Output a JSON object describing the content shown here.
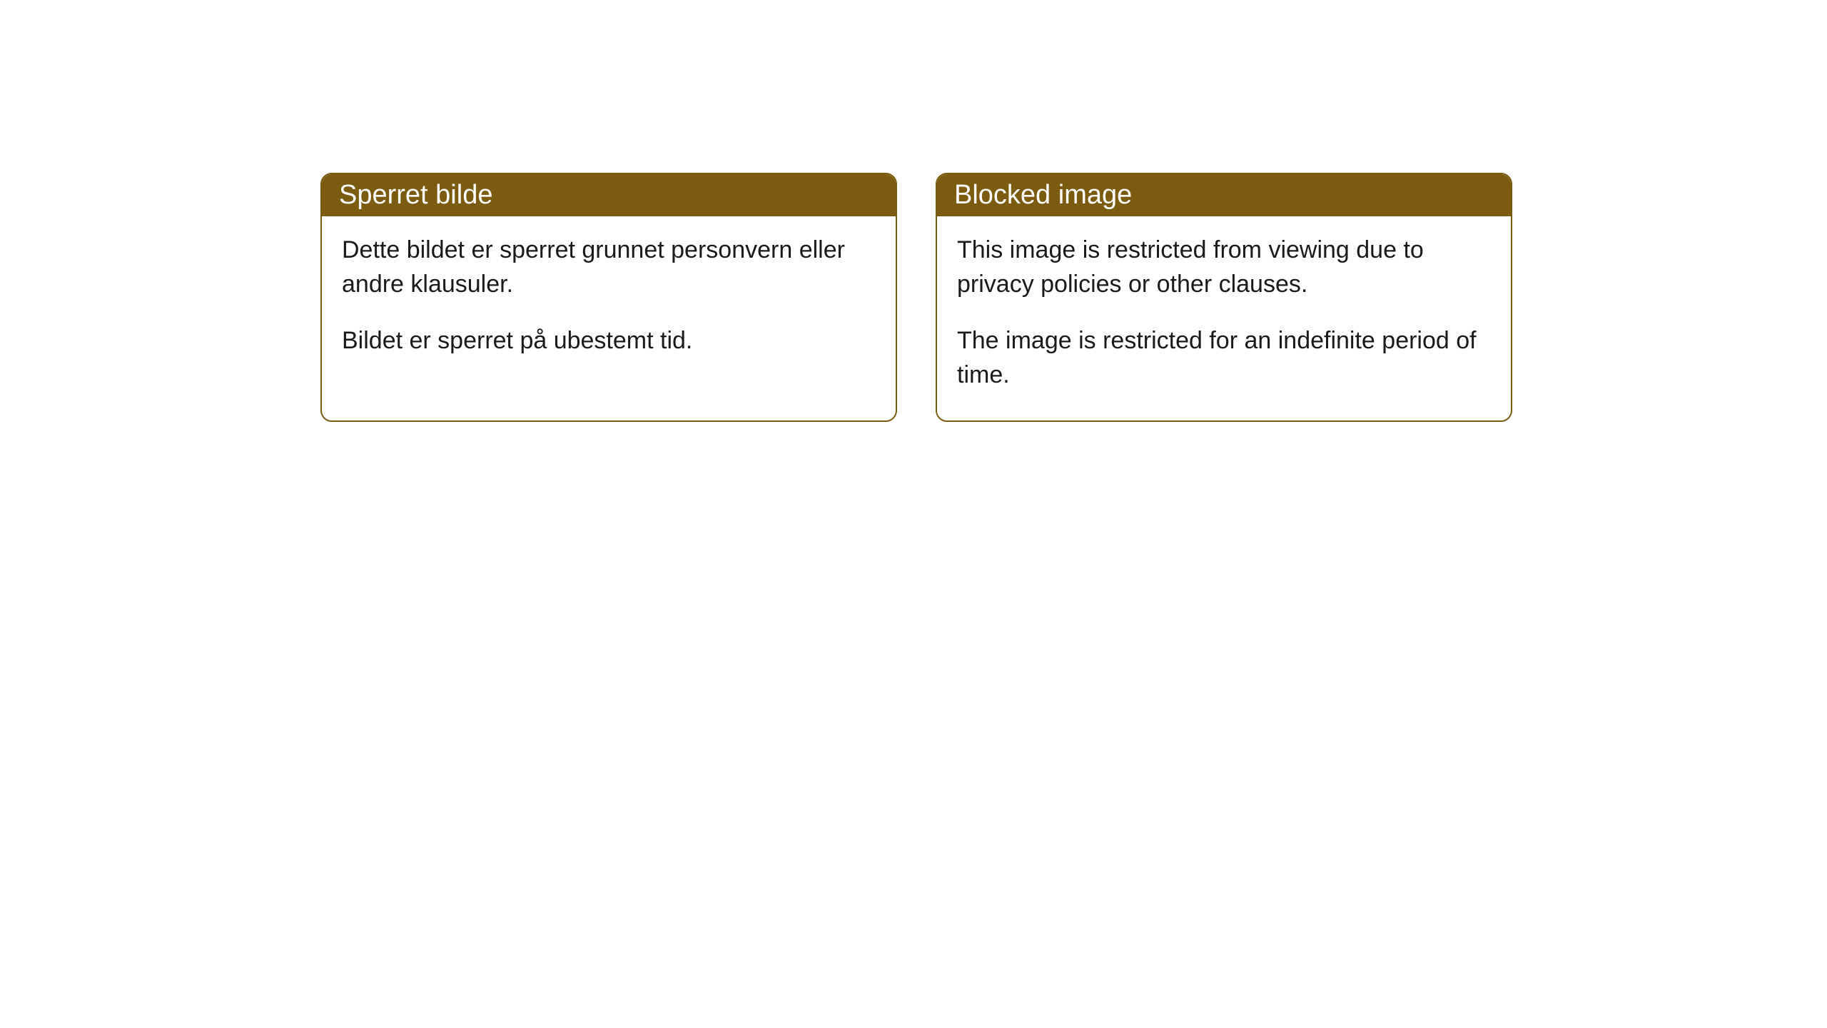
{
  "cards": [
    {
      "title": "Sperret bilde",
      "paragraph1": "Dette bildet er sperret grunnet personvern eller andre klausuler.",
      "paragraph2": "Bildet er sperret på ubestemt tid."
    },
    {
      "title": "Blocked image",
      "paragraph1": "This image is restricted from viewing due to privacy policies or other clauses.",
      "paragraph2": "The image is restricted for an indefinite period of time."
    }
  ],
  "style": {
    "header_bg_color": "#7a5b10",
    "header_text_color": "#ffffff",
    "border_color": "#7a5b10",
    "body_bg_color": "#ffffff",
    "body_text_color": "#1a1a1a",
    "border_radius": 16,
    "header_fontsize": 38,
    "body_fontsize": 34
  }
}
